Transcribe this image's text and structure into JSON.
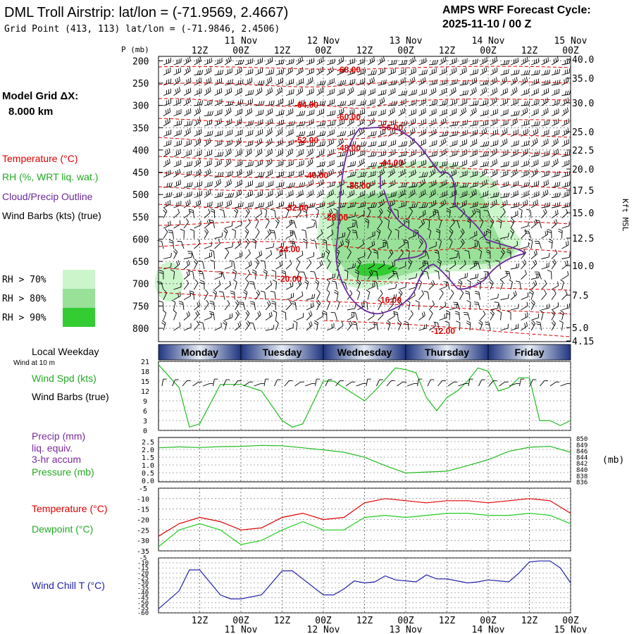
{
  "header": {
    "title": "DML Troll Airstrip:  lat/lon = (-71.9569, 2.4667)",
    "grid_point": "Grid Point (413, 113) lat/lon = (-71.9846, 2.4506)",
    "cycle_label": "AMPS WRF Forecast Cycle:",
    "cycle_value": "2025-11-10 / 00  Z"
  },
  "left_legend": {
    "model_grid": "Model Grid ΔX:",
    "model_grid_value": "8.000 km",
    "temperature": "Temperature (°C)",
    "rh": "RH (%, WRT liq. wat.)",
    "cloud": "Cloud/Precip Outline",
    "wind": "Wind Barbs (kts) (true)",
    "rh70": "RH > 70%",
    "rh80": "RH > 80%",
    "rh90": "RH > 90%"
  },
  "colors": {
    "temperature": "#dd0000",
    "rh70": "#ccf5cc",
    "rh80": "#99e099",
    "rh90": "#33cc33",
    "cloud": "#6a2a9a",
    "wind_line": "#22bb22",
    "pressure_line": "#22bb22",
    "temp_line": "#dd0000",
    "dew_line": "#22cc22",
    "chill_line": "#2222aa",
    "violet_label": "#7a2a9a"
  },
  "chart_data": [
    {
      "type": "line",
      "name": "vertical_cross_section",
      "title": "Time-height forecast cross section",
      "ylabel": "P (mb)",
      "right_label": "Kft MSL",
      "time_labels_top": [
        "12Z",
        "00Z",
        "12Z",
        "00Z",
        "12Z",
        "00Z",
        "12Z",
        "00Z",
        "12Z",
        "00Z"
      ],
      "date_labels": [
        "11 Nov",
        "12 Nov",
        "13 Nov",
        "14 Nov",
        "15 Nov"
      ],
      "pressure_ticks": [
        200,
        250,
        300,
        350,
        400,
        450,
        500,
        550,
        600,
        650,
        700,
        750,
        800
      ],
      "kft_ticks": [
        "40.0",
        "35.0",
        "30.0",
        "25.0",
        "22.5",
        "20.0",
        "17.5",
        "15.0",
        "12.5",
        "10.0",
        "7.5",
        "5.0",
        "4.15"
      ],
      "temperature_contour_labels": [
        "-68.00",
        "-64.00",
        "-60.00",
        "-56.00",
        "-52.00",
        "-48.00",
        "-44.00",
        "-40.00",
        "-36.00",
        "-32.00",
        "-28.00",
        "-24.00",
        "-20.00",
        "-16.00",
        "-12.00"
      ],
      "ylim": [
        190,
        830
      ],
      "hours_range": [
        0,
        120
      ]
    },
    {
      "type": "line",
      "name": "surface_wind",
      "label_weekday": "Local Weekday",
      "label_wind10": "Wind at 10 m",
      "weekdays": [
        "Monday",
        "Tuesday",
        "Wednesday",
        "Thursday",
        "Friday"
      ],
      "series_label": "Wind Spd (kts)",
      "barb_label": "Wind Barbs (true)",
      "yticks": [
        0,
        3,
        6,
        9,
        12,
        15,
        18,
        21
      ],
      "ylim": [
        0,
        21
      ],
      "x": [
        0,
        6,
        9,
        12,
        18,
        21,
        24,
        30,
        36,
        39,
        42,
        48,
        51,
        57,
        60,
        63,
        69,
        72,
        75,
        78,
        81,
        84,
        87,
        90,
        93,
        96,
        99,
        102,
        105,
        108,
        111,
        114,
        117,
        120
      ],
      "values": [
        20,
        13,
        1,
        2,
        14,
        14,
        14,
        12,
        3,
        1,
        2,
        15,
        15,
        11,
        9,
        12,
        19,
        18.5,
        17.5,
        10,
        6,
        10,
        12,
        15,
        19,
        18,
        12,
        13,
        16,
        16,
        3,
        3,
        1.5,
        3
      ]
    },
    {
      "type": "line",
      "name": "precip_pressure",
      "label_precip": "Precip (mm)",
      "label_liq": "liq. equiv.",
      "label_accum": "3-hr accum",
      "label_pressure": "Pressure (mb)",
      "left_ticks": [
        "2.5",
        "2.0",
        "1.5",
        "1.0",
        "0.5",
        "0.0"
      ],
      "right_ticks": [
        "850",
        "849",
        "846",
        "844",
        "842",
        "840",
        "838",
        "836"
      ],
      "unit": "(mb)",
      "ylim": [
        835,
        850
      ],
      "x": [
        0,
        6,
        12,
        18,
        24,
        30,
        36,
        42,
        48,
        54,
        60,
        66,
        72,
        78,
        84,
        90,
        96,
        102,
        108,
        114,
        120
      ],
      "values": [
        846.5,
        846.8,
        846.6,
        846.9,
        847.0,
        847.3,
        847.2,
        846.5,
        845.8,
        845.0,
        843.3,
        840.5,
        838.0,
        838.3,
        838.6,
        840.5,
        842.5,
        845.3,
        846.7,
        847.0,
        845.0
      ]
    },
    {
      "type": "line",
      "name": "temperature_dewpoint",
      "label_temp": "Temperature (°C)",
      "label_dew": "Dewpoint (°C)",
      "yticks": [
        "-5",
        "-10",
        "-15",
        "-20",
        "-25",
        "-30",
        "-35"
      ],
      "ylim": [
        -35,
        -5
      ],
      "x": [
        0,
        6,
        12,
        18,
        24,
        30,
        36,
        42,
        48,
        54,
        60,
        66,
        72,
        78,
        84,
        90,
        96,
        102,
        108,
        114,
        120
      ],
      "series": [
        {
          "name": "Temperature",
          "values": [
            -28,
            -22,
            -19,
            -21,
            -25,
            -24,
            -19,
            -17,
            -20,
            -19,
            -12,
            -10,
            -11,
            -12,
            -11,
            -11,
            -12,
            -11,
            -10,
            -11,
            -17
          ]
        },
        {
          "name": "Dewpoint",
          "values": [
            -33,
            -25,
            -22,
            -25,
            -32,
            -30,
            -25,
            -21,
            -25,
            -25,
            -19,
            -18,
            -19,
            -18,
            -17,
            -17,
            -18,
            -18,
            -17,
            -18,
            -22
          ]
        }
      ]
    },
    {
      "type": "line",
      "name": "wind_chill",
      "label": "Wind Chill T (°C)",
      "yticks": [
        "-5",
        "-10",
        "-15",
        "-20",
        "-25",
        "-30",
        "-35",
        "-40",
        "-45",
        "-50",
        "-55",
        "-60"
      ],
      "ylim": [
        -60,
        -5
      ],
      "x": [
        0,
        6,
        9,
        12,
        18,
        21,
        24,
        30,
        36,
        39,
        42,
        48,
        51,
        54,
        57,
        60,
        63,
        66,
        69,
        72,
        75,
        78,
        81,
        84,
        87,
        90,
        93,
        96,
        99,
        102,
        105,
        108,
        111,
        114,
        117,
        120
      ],
      "values": [
        -56,
        -38,
        -17,
        -17,
        -42,
        -46,
        -46,
        -42,
        -18,
        -18,
        -26,
        -42,
        -42,
        -36,
        -28,
        -30,
        -29,
        -23,
        -27,
        -28,
        -29,
        -22,
        -26,
        -26,
        -28,
        -30,
        -29,
        -27,
        -28,
        -29,
        -20,
        -9,
        -8,
        -8,
        -15,
        -30
      ]
    }
  ],
  "bottom_axis": {
    "time_labels": [
      "12Z",
      "00Z",
      "12Z",
      "00Z",
      "12Z",
      "00Z",
      "12Z",
      "00Z",
      "12Z",
      "00Z"
    ],
    "date_labels": [
      "11 Nov",
      "12 Nov",
      "13 Nov",
      "14 Nov",
      "15 Nov"
    ]
  }
}
